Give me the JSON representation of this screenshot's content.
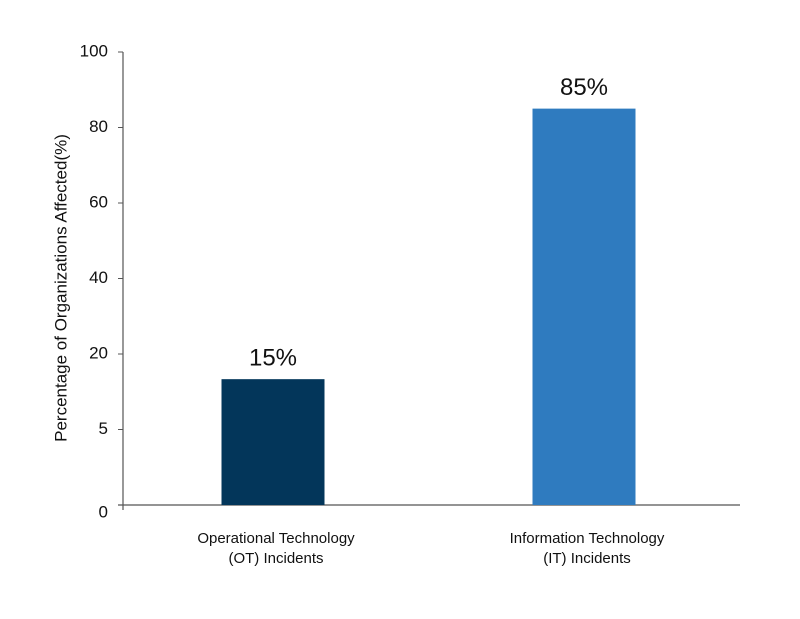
{
  "chart_data": {
    "type": "bar",
    "y_label": "Percentage of Organizations Affected(%)",
    "categories": [
      "Operational Technology\n(OT) Incidents",
      "Information Technology\n(IT) Incidents"
    ],
    "values": [
      15,
      85
    ],
    "value_labels": [
      "15%",
      "85%"
    ],
    "colors": [
      "#03365a",
      "#2f7bbf"
    ],
    "ylim": [
      0,
      100
    ],
    "yticks": [
      0,
      5,
      20,
      40,
      60,
      80,
      100
    ],
    "grid": false
  }
}
